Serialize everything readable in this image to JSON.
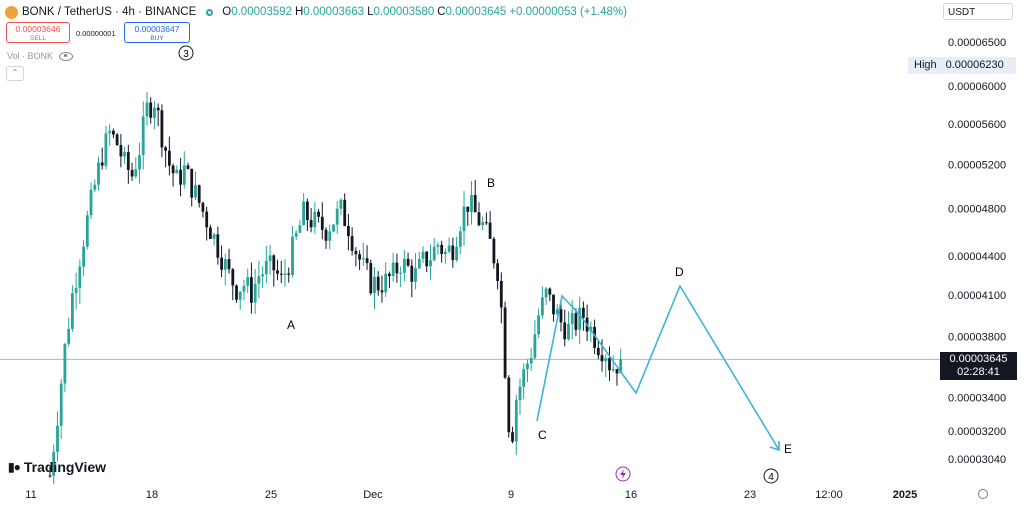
{
  "header": {
    "symbol": "BONK / TetherUS · 4h · BINANCE",
    "open_label": "O",
    "open": "0.00003592",
    "high_label": "H",
    "high": "0.00003663",
    "low_label": "L",
    "low": "0.00003580",
    "close_label": "C",
    "close": "0.00003645",
    "change": "+0.00000053 (+1.48%)"
  },
  "trade": {
    "sell_price": "0.00003646",
    "sell_label": "SELL",
    "spread": "0.00000001",
    "buy_price": "0.00003647",
    "buy_label": "BUY"
  },
  "volume_label": "Vol · BONK",
  "currency": "USDT",
  "price_tag": {
    "price": "0.00003645",
    "countdown": "02:28:41"
  },
  "high_marker": {
    "label": "High",
    "value": "0.00006230"
  },
  "watermark": "TradingView",
  "colors": {
    "up": "#26a69a",
    "down": "#131722",
    "projection": "#3cb4d9",
    "price_line": "#b2b5be"
  },
  "chart_data": {
    "type": "candlestick",
    "y_scale": "log",
    "y_tick_labels": [
      "0.00006500",
      "0.00006000",
      "0.00005600",
      "0.00005200",
      "0.00004800",
      "0.00004400",
      "0.00004100",
      "0.00003800",
      "0.00003400",
      "0.00003200",
      "0.00003040"
    ],
    "y_ticks": [
      6.5e-05,
      6e-05,
      5.6e-05,
      5.2e-05,
      4.8e-05,
      4.4e-05,
      4.1e-05,
      3.8e-05,
      3.4e-05,
      3.2e-05,
      3.04e-05
    ],
    "x_tick_labels": [
      "11",
      "18",
      "25",
      "Dec",
      "9",
      "16",
      "23",
      "12:00",
      "2025"
    ],
    "current_price": 3.645e-05,
    "trend": [
      [
        0,
        2.95e-05
      ],
      [
        2,
        3.3e-05
      ],
      [
        4,
        3.72e-05
      ],
      [
        6,
        4.1e-05
      ],
      [
        8,
        4.4e-05
      ],
      [
        10,
        4.7e-05
      ],
      [
        12,
        5e-05
      ],
      [
        14,
        5.3e-05
      ],
      [
        16,
        5.5e-05
      ],
      [
        18,
        5.4e-05
      ],
      [
        20,
        5.2e-05
      ],
      [
        22,
        5.1e-05
      ],
      [
        24,
        5.35e-05
      ],
      [
        26,
        5.75e-05
      ],
      [
        28,
        5.85e-05
      ],
      [
        30,
        5.5e-05
      ],
      [
        32,
        5.2e-05
      ],
      [
        34,
        5.05e-05
      ],
      [
        36,
        5.15e-05
      ],
      [
        38,
        5e-05
      ],
      [
        40,
        4.85e-05
      ],
      [
        42,
        4.7e-05
      ],
      [
        44,
        4.55e-05
      ],
      [
        46,
        4.4e-05
      ],
      [
        48,
        4.25e-05
      ],
      [
        50,
        4.15e-05
      ],
      [
        52,
        4.18e-05
      ],
      [
        54,
        4.12e-05
      ],
      [
        56,
        4.25e-05
      ],
      [
        58,
        4.3e-05
      ],
      [
        60,
        4.3e-05
      ],
      [
        62,
        4.2e-05
      ],
      [
        64,
        4.35e-05
      ],
      [
        66,
        4.55e-05
      ],
      [
        68,
        4.75e-05
      ],
      [
        70,
        4.7e-05
      ],
      [
        72,
        4.65e-05
      ],
      [
        74,
        4.62e-05
      ],
      [
        76,
        4.7e-05
      ],
      [
        78,
        4.78e-05
      ],
      [
        80,
        4.65e-05
      ],
      [
        82,
        4.45e-05
      ],
      [
        84,
        4.3e-05
      ],
      [
        86,
        4.2e-05
      ],
      [
        88,
        4.18e-05
      ],
      [
        90,
        4.2e-05
      ],
      [
        92,
        4.25e-05
      ],
      [
        94,
        4.35e-05
      ],
      [
        96,
        4.3e-05
      ],
      [
        98,
        4.25e-05
      ],
      [
        100,
        4.35e-05
      ],
      [
        102,
        4.4e-05
      ],
      [
        104,
        4.5e-05
      ],
      [
        106,
        4.42e-05
      ],
      [
        108,
        4.48e-05
      ],
      [
        110,
        4.7e-05
      ],
      [
        112,
        4.85e-05
      ],
      [
        114,
        4.75e-05
      ],
      [
        116,
        4.65e-05
      ],
      [
        118,
        4.5e-05
      ],
      [
        120,
        4.3e-05
      ],
      [
        121,
        4e-05
      ],
      [
        122,
        3.6e-05
      ],
      [
        123,
        3.25e-05
      ],
      [
        124,
        3.2e-05
      ],
      [
        125,
        3.4e-05
      ],
      [
        127,
        3.55e-05
      ],
      [
        129,
        3.7e-05
      ],
      [
        131,
        3.95e-05
      ],
      [
        133,
        4.1e-05
      ],
      [
        135,
        4e-05
      ],
      [
        137,
        3.9e-05
      ],
      [
        139,
        3.85e-05
      ],
      [
        141,
        3.9e-05
      ],
      [
        143,
        3.95e-05
      ],
      [
        145,
        3.85e-05
      ],
      [
        147,
        3.75e-05
      ],
      [
        149,
        3.7e-05
      ],
      [
        150,
        3.62e-05
      ],
      [
        151,
        3.6e-05
      ],
      [
        152,
        3.62e-05
      ],
      [
        153,
        3.645e-05
      ]
    ],
    "projection_path": [
      [
        3.23e-05,
        "C"
      ],
      [
        4.06e-05,
        "B"
      ],
      [
        3.42e-05,
        "D"
      ],
      [
        4.08e-05,
        "D"
      ],
      [
        3.11e-05,
        "E"
      ]
    ],
    "wave_labels": [
      "A",
      "B",
      "C",
      "D",
      "E"
    ],
    "circled_labels": [
      "3",
      "4"
    ]
  }
}
